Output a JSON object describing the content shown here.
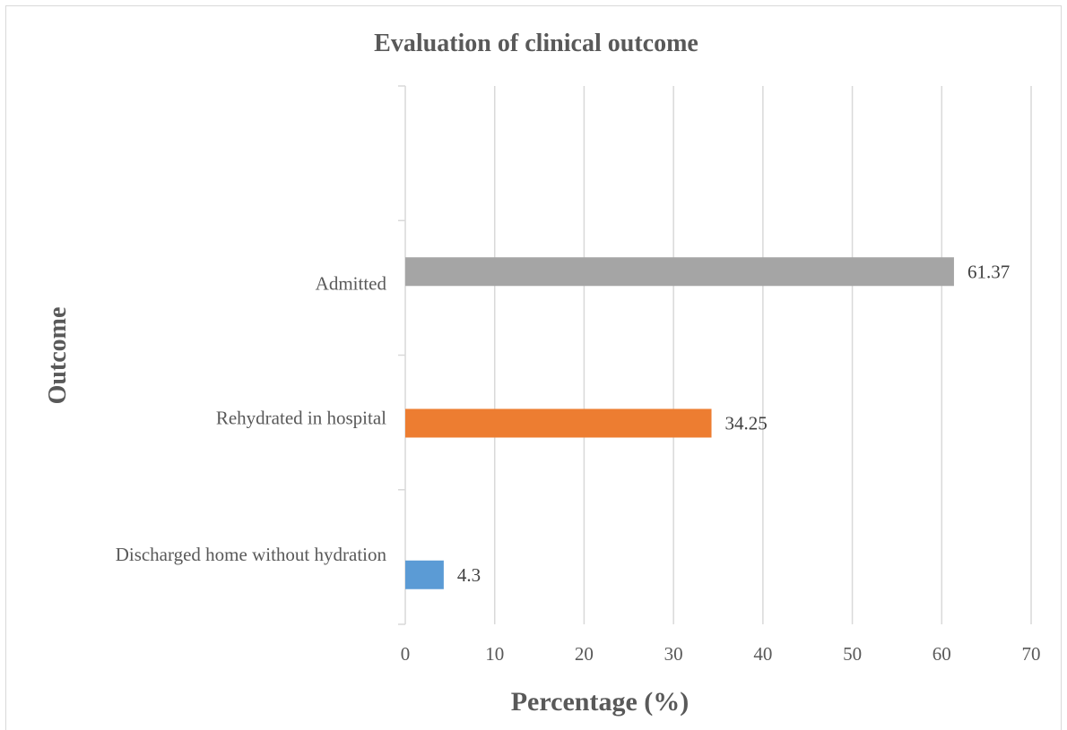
{
  "chart_data": {
    "type": "bar",
    "orientation": "horizontal",
    "title": "Evaluation of clinical outcome",
    "xlabel": "Percentage (%)",
    "ylabel": "Outcome",
    "xlim": [
      0,
      70
    ],
    "xticks": [
      0,
      10,
      20,
      30,
      40,
      50,
      60,
      70
    ],
    "xtick_labels": [
      "0",
      "10",
      "20",
      "30",
      "40",
      "50",
      "60",
      "70"
    ],
    "grid": "vertical",
    "legend": "none",
    "categories": [
      "Admitted",
      "Rehydrated in hospital",
      "Discharged home without hydration"
    ],
    "values": [
      61.37,
      34.25,
      4.3
    ],
    "data_labels": [
      "61.37",
      "34.25",
      "4.3"
    ],
    "colors": [
      "#a5a5a5",
      "#ed7d31",
      "#5b9bd5"
    ],
    "grid_color": "#d9d9d9",
    "text_color": "#595959"
  }
}
